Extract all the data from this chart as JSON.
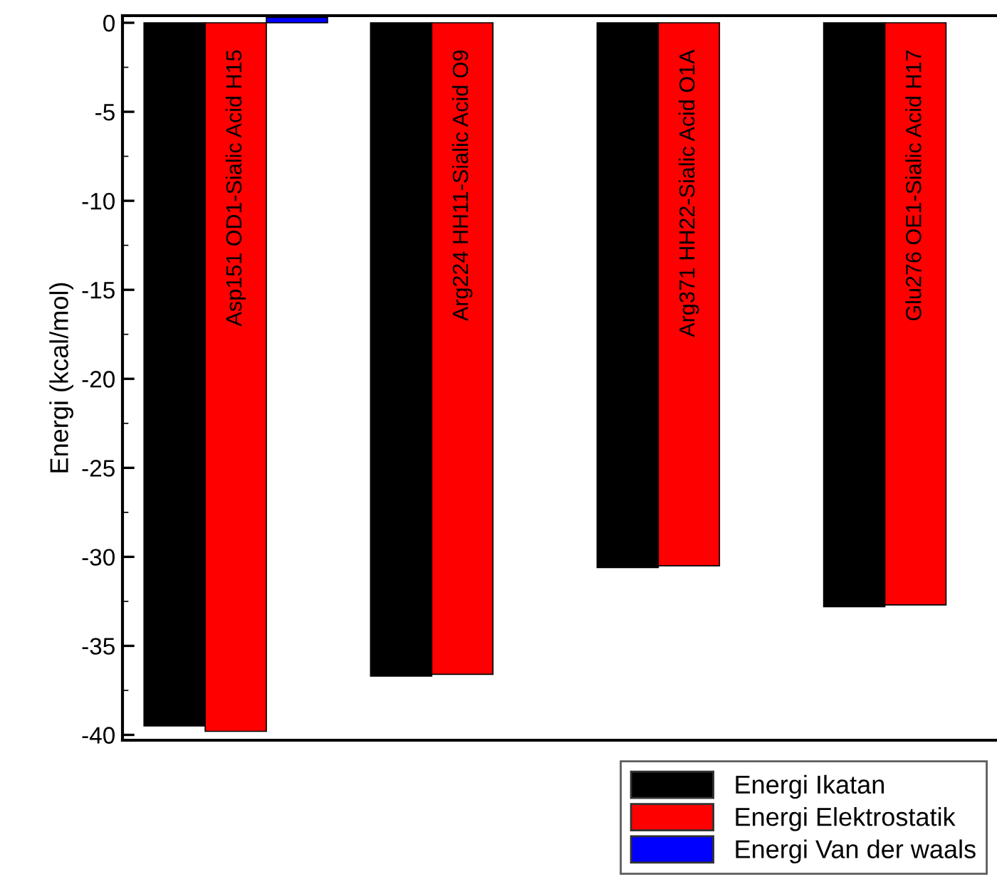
{
  "chart_data": {
    "type": "bar",
    "ylabel": "Energi (kcal/mol)",
    "categories": [
      "Asp151 OD1-Sialic Acid H15",
      "Arg224 HH11-Sialic Acid O9",
      "Arg371 HH22-Sialic Acid O1A",
      "Glu276 OE1-Sialic Acid H17"
    ],
    "series": [
      {
        "name": "Energi Ikatan",
        "color": "#000000",
        "values": [
          -39.5,
          -36.7,
          -30.6,
          -32.8
        ]
      },
      {
        "name": "Energi Elektrostatik",
        "color": "#ff0000",
        "values": [
          -39.8,
          -36.6,
          -30.5,
          -32.7
        ]
      },
      {
        "name": "Energi Van der waals",
        "color": "#0000ff",
        "values": [
          0.3,
          null,
          null,
          null
        ]
      }
    ],
    "ylim": [
      -40.3,
      0.4
    ],
    "yticks": [
      -40,
      -35,
      -30,
      -25,
      -20,
      -15,
      -10,
      -5,
      0
    ],
    "tick_labels": "y",
    "legend": "bottom right",
    "grid": false
  }
}
